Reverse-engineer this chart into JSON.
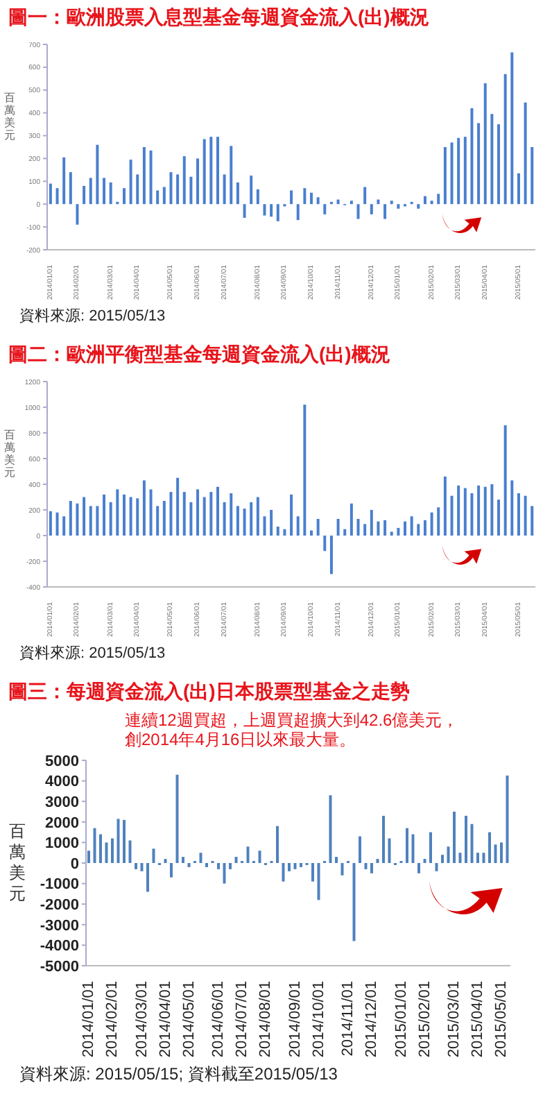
{
  "chart_data": [
    {
      "type": "bar",
      "title": "圖一：歐洲股票入息型基金每週資金流入(出)概況",
      "ylabel": "百萬美元",
      "categories": [
        "2014/01/01",
        null,
        null,
        null,
        "2014/02/01",
        null,
        null,
        null,
        null,
        "2014/03/01",
        null,
        null,
        null,
        "2014/04/01",
        null,
        null,
        null,
        null,
        "2014/05/01",
        null,
        null,
        null,
        "2014/06/01",
        null,
        null,
        null,
        "2014/07/01",
        null,
        null,
        null,
        null,
        "2014/08/01",
        null,
        null,
        null,
        "2014/09/01",
        null,
        null,
        null,
        "2014/10/01",
        null,
        null,
        null,
        "2014/11/01",
        null,
        null,
        null,
        null,
        "2014/12/01",
        null,
        null,
        null,
        "2015/01/01",
        null,
        null,
        null,
        null,
        "2015/02/01",
        null,
        null,
        null,
        "2015/03/01",
        null,
        null,
        null,
        "2015/04/01",
        null,
        null,
        null,
        null,
        "2015/05/01",
        null,
        null
      ],
      "values": [
        90,
        70,
        205,
        140,
        -90,
        80,
        115,
        260,
        115,
        95,
        10,
        70,
        195,
        130,
        250,
        235,
        60,
        75,
        140,
        130,
        210,
        120,
        200,
        285,
        295,
        295,
        130,
        255,
        95,
        -60,
        125,
        65,
        -50,
        -55,
        -75,
        -10,
        60,
        -70,
        70,
        50,
        30,
        -45,
        10,
        20,
        -5,
        15,
        -65,
        75,
        -45,
        20,
        -65,
        15,
        -20,
        -10,
        10,
        -20,
        35,
        15,
        45,
        250,
        270,
        290,
        295,
        420,
        355,
        530,
        395,
        350,
        570,
        665,
        135,
        445,
        250
      ],
      "color": "#4a7fcf",
      "ylim": [
        -200,
        700
      ],
      "yticks": [
        -200,
        -100,
        0,
        100,
        200,
        300,
        400,
        500,
        600,
        700
      ],
      "annotations": [
        "資料來源: 2015/05/13"
      ]
    },
    {
      "type": "bar",
      "title": "圖二：歐洲平衡型基金每週資金流入(出)概況",
      "ylabel": "百萬美元",
      "categories": [
        "2014/01/01",
        null,
        null,
        null,
        "2014/02/01",
        null,
        null,
        null,
        null,
        "2014/03/01",
        null,
        null,
        null,
        "2014/04/01",
        null,
        null,
        null,
        null,
        "2014/05/01",
        null,
        null,
        null,
        "2014/06/01",
        null,
        null,
        null,
        "2014/07/01",
        null,
        null,
        null,
        null,
        "2014/08/01",
        null,
        null,
        null,
        "2014/09/01",
        null,
        null,
        null,
        "2014/10/01",
        null,
        null,
        null,
        "2014/11/01",
        null,
        null,
        null,
        null,
        "2014/12/01",
        null,
        null,
        null,
        "2015/01/01",
        null,
        null,
        null,
        null,
        "2015/02/01",
        null,
        null,
        null,
        "2015/03/01",
        null,
        null,
        null,
        "2015/04/01",
        null,
        null,
        null,
        null,
        "2015/05/01",
        null,
        null
      ],
      "values": [
        190,
        180,
        150,
        270,
        250,
        300,
        230,
        230,
        320,
        260,
        360,
        320,
        300,
        290,
        430,
        360,
        230,
        270,
        340,
        450,
        340,
        260,
        360,
        300,
        340,
        380,
        260,
        330,
        230,
        210,
        260,
        300,
        150,
        200,
        70,
        50,
        320,
        150,
        1020,
        40,
        130,
        -120,
        -300,
        130,
        50,
        250,
        130,
        90,
        200,
        110,
        120,
        30,
        60,
        110,
        150,
        90,
        120,
        180,
        220,
        460,
        310,
        390,
        370,
        330,
        390,
        380,
        400,
        280,
        860,
        430,
        330,
        310,
        230
      ],
      "color": "#4a7fcf",
      "ylim": [
        -400,
        1200
      ],
      "yticks": [
        -400,
        -200,
        0,
        200,
        400,
        600,
        800,
        1000,
        1200
      ],
      "annotations": [
        "資料來源: 2015/05/13"
      ]
    },
    {
      "type": "bar",
      "title": "圖三：每週資金流入(出)日本股票型基金之走勢",
      "ylabel": "百萬美元",
      "categories": [
        "2014/01/01",
        null,
        null,
        null,
        "2014/02/01",
        null,
        null,
        null,
        null,
        "2014/03/01",
        null,
        null,
        null,
        "2014/04/01",
        null,
        null,
        null,
        "2014/05/01",
        null,
        null,
        null,
        null,
        "2014/06/01",
        null,
        null,
        null,
        "2014/07/01",
        null,
        null,
        null,
        "2014/08/01",
        null,
        null,
        null,
        null,
        "2014/09/01",
        null,
        null,
        null,
        "2014/10/01",
        null,
        null,
        null,
        null,
        "2014/11/01",
        null,
        null,
        null,
        "2014/12/01",
        null,
        null,
        null,
        null,
        "2015/01/01",
        null,
        null,
        null,
        "2015/02/01",
        null,
        null,
        null,
        null,
        "2015/03/01",
        null,
        null,
        null,
        "2015/04/01",
        null,
        null,
        null,
        "2015/05/01",
        null
      ],
      "values": [
        600,
        1700,
        1400,
        1000,
        1200,
        2150,
        2100,
        1100,
        -300,
        -400,
        -1400,
        700,
        -100,
        200,
        -700,
        4300,
        300,
        -200,
        100,
        500,
        -200,
        100,
        -300,
        -1000,
        -300,
        300,
        100,
        800,
        100,
        600,
        -100,
        100,
        1800,
        -900,
        -400,
        -300,
        -200,
        -100,
        -900,
        -1800,
        100,
        3300,
        300,
        -600,
        100,
        -3800,
        1300,
        -300,
        -500,
        200,
        2300,
        1200,
        -100,
        100,
        1700,
        1400,
        -500,
        200,
        1500,
        -400,
        400,
        800,
        2500,
        500,
        2300,
        1900,
        500,
        500,
        1500,
        900,
        1000,
        4260
      ],
      "color": "#4f81bd",
      "ylim": [
        -5000,
        5000
      ],
      "yticks": [
        -5000,
        -4000,
        -3000,
        -2000,
        -1000,
        0,
        1000,
        2000,
        3000,
        4000,
        5000
      ],
      "annotations": [
        "連續12週買超，上週買超擴大到42.6億美元，創2014年4月16日以來最大量。",
        "資料來源: 2015/05/15; 資料截至2015/05/13"
      ]
    }
  ]
}
